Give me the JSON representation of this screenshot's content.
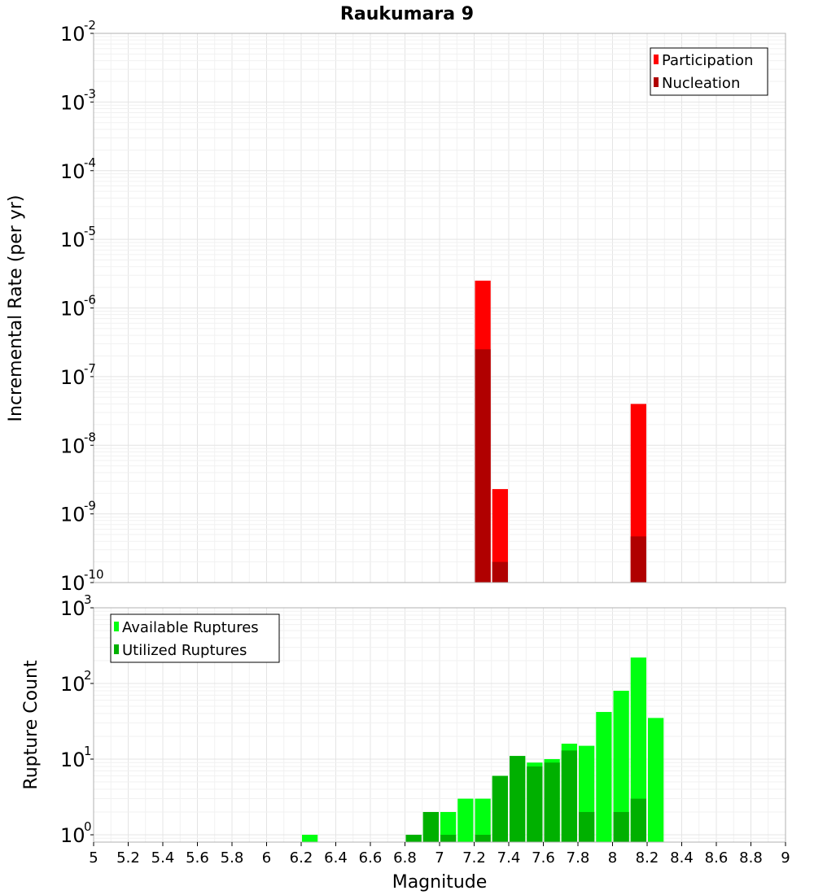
{
  "chart_data": [
    {
      "type": "bar",
      "title": "Raukumara 9",
      "xlabel": "",
      "ylabel": "Incremental Rate (per yr)",
      "yscale": "log",
      "xlim": [
        5,
        9
      ],
      "ylim": [
        1e-10,
        0.01
      ],
      "grid": true,
      "legend_position": "top-right",
      "series": [
        {
          "name": "Participation",
          "color": "#ff0000",
          "points": [
            [
              7.25,
              2.5e-06
            ],
            [
              7.35,
              2.3e-09
            ],
            [
              8.15,
              4e-08
            ]
          ]
        },
        {
          "name": "Nucleation",
          "color": "#b00000",
          "points": [
            [
              7.25,
              2.5e-07
            ],
            [
              7.35,
              2e-10
            ],
            [
              8.15,
              4.7e-10
            ]
          ]
        }
      ]
    },
    {
      "type": "bar",
      "title": "",
      "xlabel": "Magnitude",
      "ylabel": "Rupture Count",
      "yscale": "log",
      "xlim": [
        5,
        9
      ],
      "ylim": [
        0.8,
        1000
      ],
      "grid": true,
      "legend_position": "top-left",
      "x_ticks": [
        "5",
        "5.2",
        "5.4",
        "5.6",
        "5.8",
        "6",
        "6.2",
        "6.4",
        "6.6",
        "6.8",
        "7",
        "7.2",
        "7.4",
        "7.6",
        "7.8",
        "8",
        "8.2",
        "8.4",
        "8.6",
        "8.8",
        "9"
      ],
      "series": [
        {
          "name": "Available Ruptures",
          "color": "#00ff10",
          "points": [
            [
              6.25,
              1
            ],
            [
              6.85,
              1
            ],
            [
              6.95,
              2
            ],
            [
              7.05,
              2
            ],
            [
              7.15,
              3
            ],
            [
              7.25,
              3
            ],
            [
              7.35,
              6
            ],
            [
              7.45,
              11
            ],
            [
              7.55,
              9
            ],
            [
              7.65,
              10
            ],
            [
              7.75,
              16
            ],
            [
              7.85,
              15
            ],
            [
              7.95,
              42
            ],
            [
              8.05,
              80
            ],
            [
              8.15,
              220
            ],
            [
              8.25,
              35
            ]
          ]
        },
        {
          "name": "Utilized Ruptures",
          "color": "#00b000",
          "points": [
            [
              6.85,
              1
            ],
            [
              6.95,
              2
            ],
            [
              7.05,
              1
            ],
            [
              7.25,
              1
            ],
            [
              7.35,
              6
            ],
            [
              7.45,
              11
            ],
            [
              7.55,
              8
            ],
            [
              7.65,
              9
            ],
            [
              7.75,
              13
            ],
            [
              7.85,
              2
            ],
            [
              8.05,
              2
            ],
            [
              8.15,
              3
            ]
          ]
        }
      ]
    }
  ]
}
